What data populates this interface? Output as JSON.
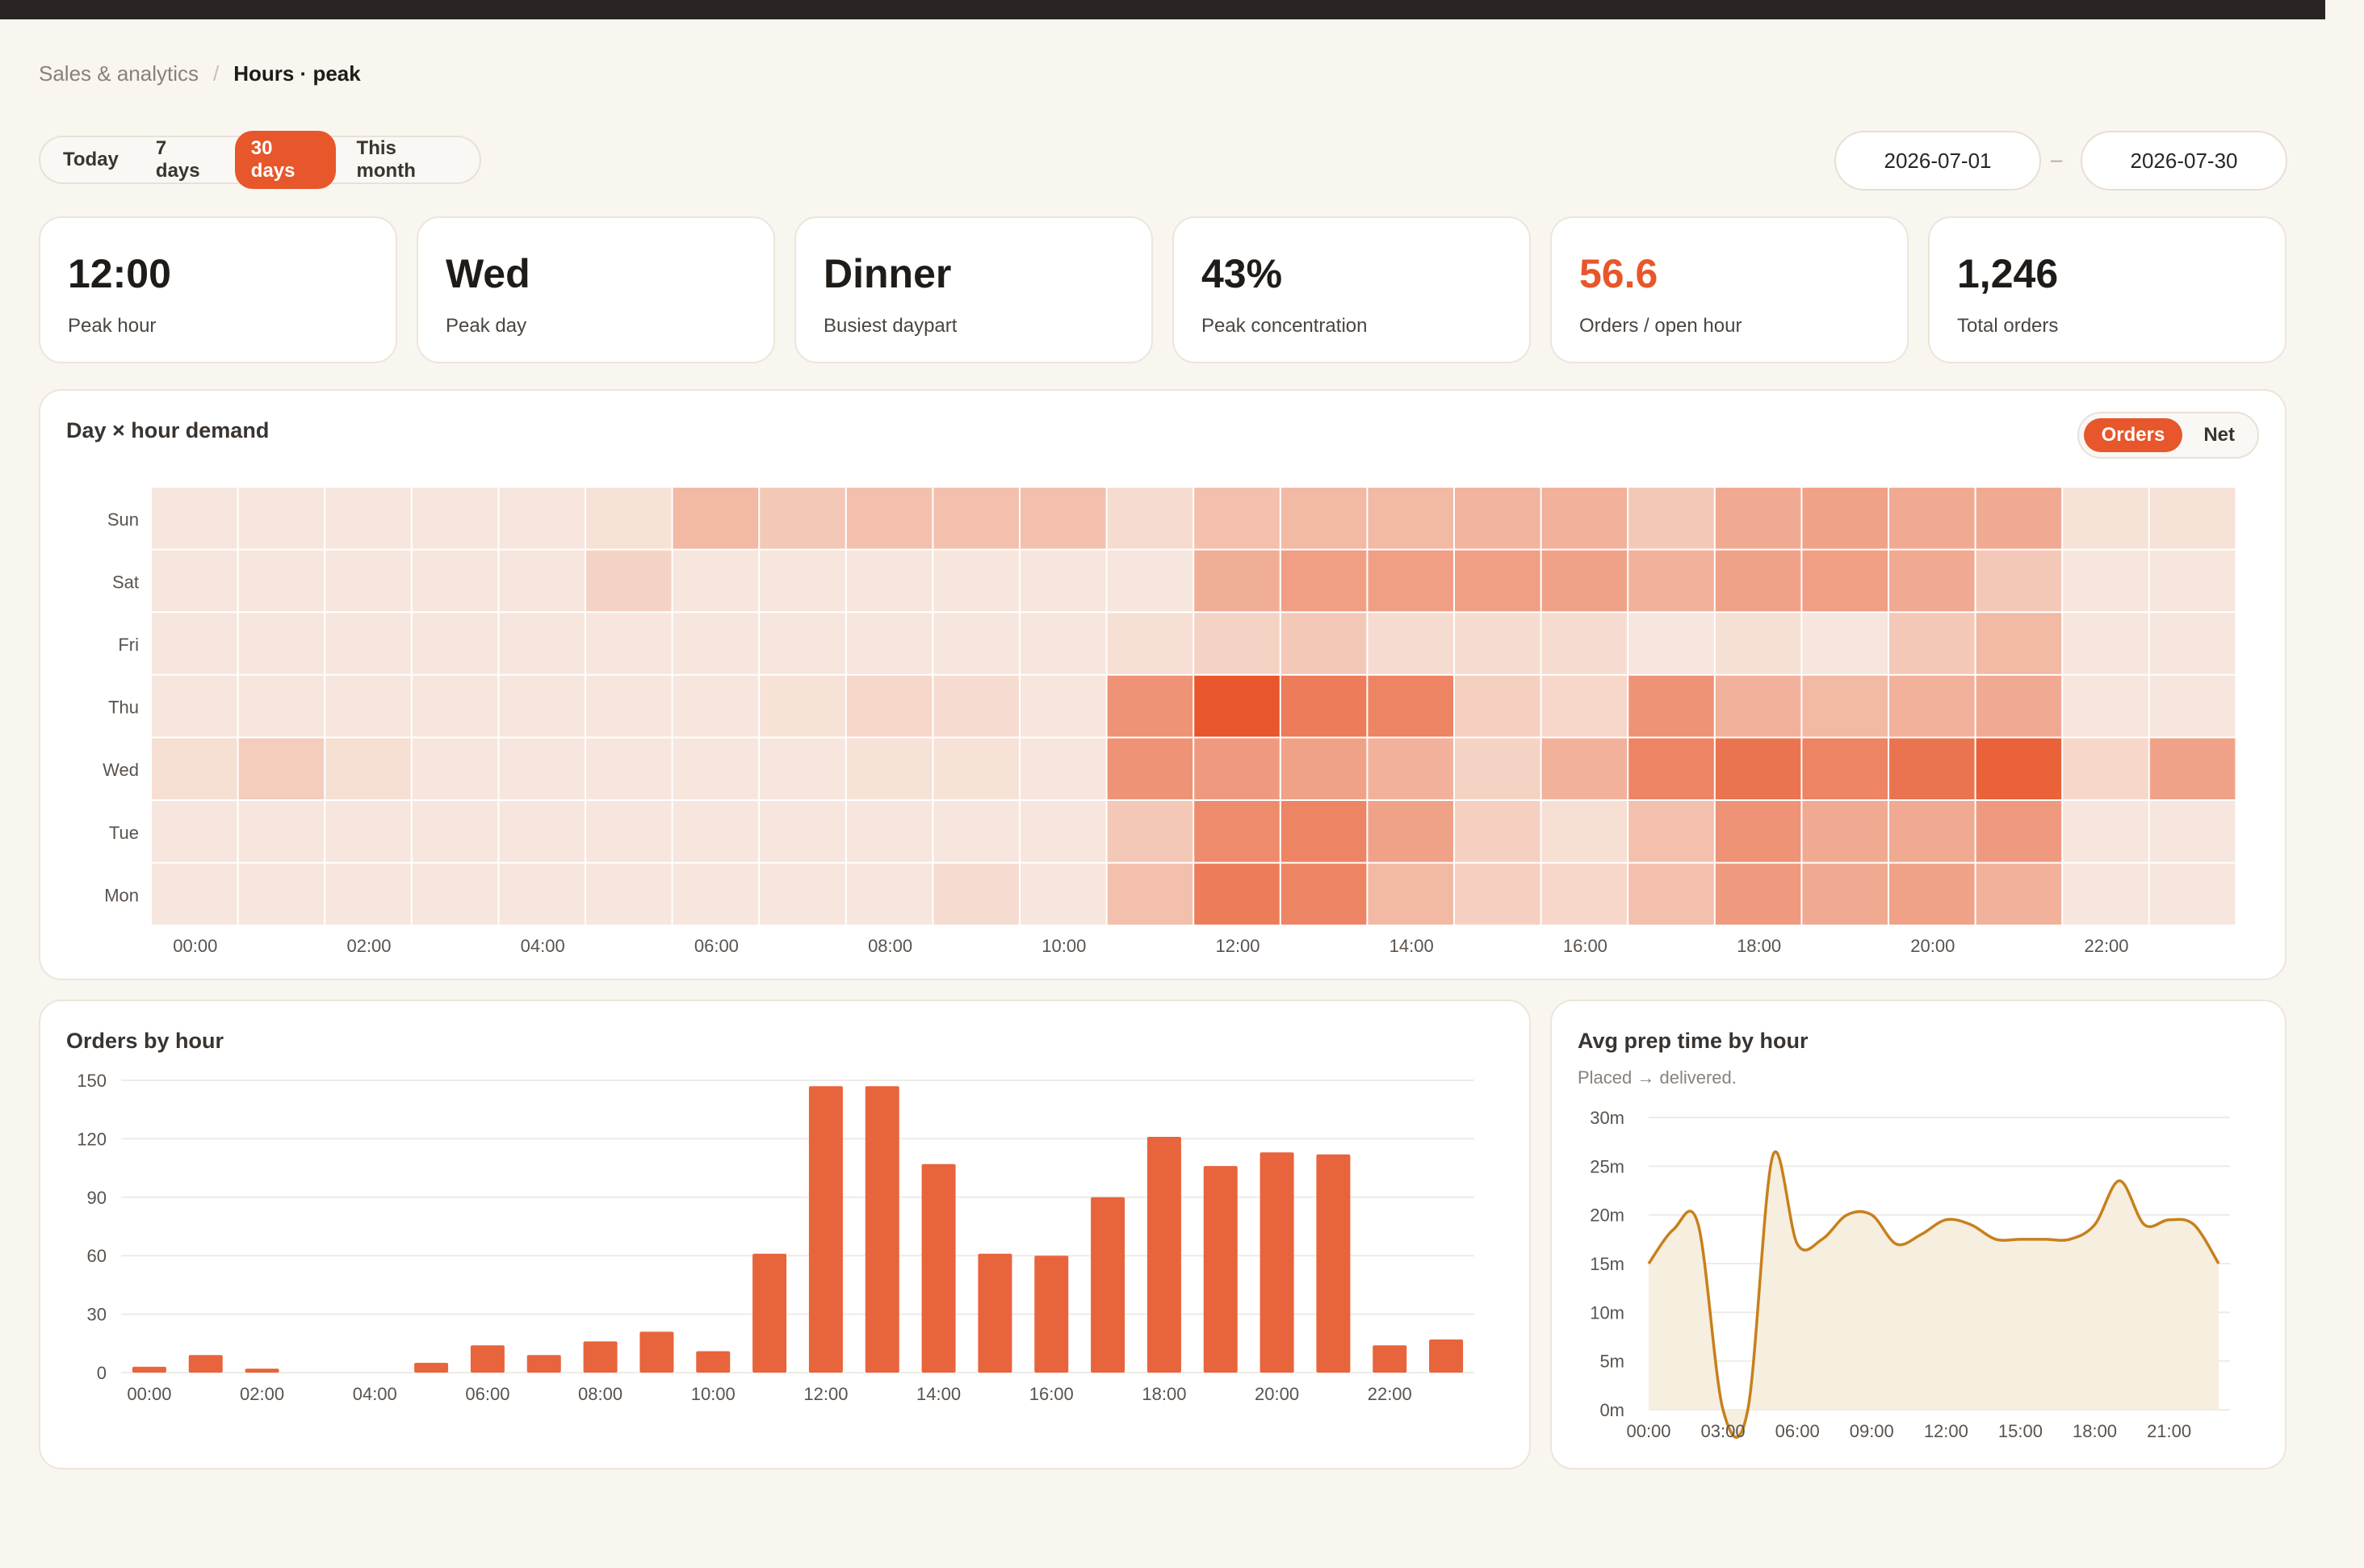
{
  "breadcrumb": {
    "parent": "Sales & analytics",
    "separator": "/",
    "current": "Hours · peak"
  },
  "range_tabs": [
    {
      "label": "Today",
      "active": false
    },
    {
      "label": "7 days",
      "active": false
    },
    {
      "label": "30 days",
      "active": true
    },
    {
      "label": "This month",
      "active": false
    }
  ],
  "date_range": {
    "start": "2026-07-01",
    "separator": "–",
    "end": "2026-07-30"
  },
  "kpis": [
    {
      "value": "12:00",
      "label": "Peak hour"
    },
    {
      "value": "Wed",
      "label": "Peak day"
    },
    {
      "value": "Dinner",
      "label": "Busiest daypart"
    },
    {
      "value": "43%",
      "label": "Peak concentration"
    },
    {
      "value": "56.6",
      "label": "Orders / open hour",
      "highlight": true
    },
    {
      "value": "1,246",
      "label": "Total orders"
    }
  ],
  "colors": {
    "accent": "#e8562b",
    "bar": "#e8643c",
    "line": "#c8801c",
    "area": "#f6eedf",
    "kpi_highlight": "#e8562b"
  },
  "heatmap": {
    "title": "Day × hour demand",
    "toggle": [
      {
        "label": "Orders",
        "active": true
      },
      {
        "label": "Net",
        "active": false
      }
    ],
    "days": [
      "Sun",
      "Sat",
      "Fri",
      "Thu",
      "Wed",
      "Tue",
      "Mon"
    ],
    "hour_labels": [
      "00:00",
      "02:00",
      "04:00",
      "06:00",
      "08:00",
      "10:00",
      "12:00",
      "14:00",
      "16:00",
      "18:00",
      "20:00",
      "22:00"
    ],
    "intensity": [
      [
        0.05,
        0.05,
        0.05,
        0.05,
        0.05,
        0.08,
        0.35,
        0.25,
        0.3,
        0.3,
        0.3,
        0.12,
        0.3,
        0.35,
        0.35,
        0.38,
        0.4,
        0.25,
        0.45,
        0.5,
        0.45,
        0.45,
        0.08,
        0.08
      ],
      [
        0.05,
        0.05,
        0.05,
        0.05,
        0.05,
        0.18,
        0.05,
        0.05,
        0.05,
        0.05,
        0.05,
        0.05,
        0.42,
        0.52,
        0.52,
        0.52,
        0.5,
        0.4,
        0.5,
        0.52,
        0.45,
        0.25,
        0.05,
        0.05
      ],
      [
        0.05,
        0.05,
        0.05,
        0.05,
        0.05,
        0.05,
        0.05,
        0.05,
        0.05,
        0.05,
        0.05,
        0.1,
        0.18,
        0.25,
        0.12,
        0.12,
        0.12,
        0.05,
        0.1,
        0.05,
        0.25,
        0.35,
        0.05,
        0.05
      ],
      [
        0.05,
        0.05,
        0.05,
        0.05,
        0.05,
        0.05,
        0.05,
        0.08,
        0.15,
        0.12,
        0.05,
        0.6,
        1.0,
        0.75,
        0.7,
        0.2,
        0.15,
        0.6,
        0.4,
        0.35,
        0.4,
        0.45,
        0.05,
        0.05
      ],
      [
        0.1,
        0.22,
        0.1,
        0.05,
        0.05,
        0.05,
        0.05,
        0.05,
        0.08,
        0.08,
        0.05,
        0.6,
        0.55,
        0.5,
        0.4,
        0.18,
        0.4,
        0.7,
        0.8,
        0.7,
        0.8,
        0.92,
        0.15,
        0.5
      ],
      [
        0.05,
        0.05,
        0.05,
        0.05,
        0.05,
        0.05,
        0.05,
        0.05,
        0.05,
        0.05,
        0.05,
        0.25,
        0.65,
        0.7,
        0.5,
        0.2,
        0.1,
        0.3,
        0.6,
        0.45,
        0.45,
        0.55,
        0.05,
        0.05
      ],
      [
        0.05,
        0.05,
        0.05,
        0.05,
        0.05,
        0.05,
        0.05,
        0.05,
        0.05,
        0.12,
        0.05,
        0.3,
        0.75,
        0.7,
        0.35,
        0.2,
        0.15,
        0.3,
        0.55,
        0.45,
        0.5,
        0.4,
        0.05,
        0.05
      ]
    ]
  },
  "chart_data": [
    {
      "type": "bar",
      "title": "Orders by hour",
      "categories": [
        "00:00",
        "01:00",
        "02:00",
        "03:00",
        "04:00",
        "05:00",
        "06:00",
        "07:00",
        "08:00",
        "09:00",
        "10:00",
        "11:00",
        "12:00",
        "13:00",
        "14:00",
        "15:00",
        "16:00",
        "17:00",
        "18:00",
        "19:00",
        "20:00",
        "21:00",
        "22:00",
        "23:00"
      ],
      "tick_labels": [
        "00:00",
        "02:00",
        "04:00",
        "06:00",
        "08:00",
        "10:00",
        "12:00",
        "14:00",
        "16:00",
        "18:00",
        "20:00",
        "22:00"
      ],
      "values": [
        3,
        9,
        2,
        0,
        0,
        5,
        14,
        9,
        16,
        21,
        11,
        61,
        147,
        147,
        107,
        61,
        60,
        90,
        121,
        106,
        113,
        112,
        14,
        17
      ],
      "ylim": [
        0,
        150
      ],
      "yticks": [
        0,
        30,
        60,
        90,
        120,
        150
      ],
      "grid": true
    },
    {
      "type": "area",
      "title": "Avg prep time by hour",
      "subtitle": "Placed → delivered.",
      "x": [
        "00:00",
        "01:00",
        "02:00",
        "03:00",
        "04:00",
        "05:00",
        "06:00",
        "07:00",
        "08:00",
        "09:00",
        "10:00",
        "11:00",
        "12:00",
        "13:00",
        "14:00",
        "15:00",
        "16:00",
        "17:00",
        "18:00",
        "19:00",
        "20:00",
        "21:00",
        "22:00",
        "23:00"
      ],
      "tick_labels": [
        "00:00",
        "03:00",
        "06:00",
        "09:00",
        "12:00",
        "15:00",
        "18:00",
        "21:00"
      ],
      "values": [
        15,
        18.5,
        19,
        0,
        0,
        26,
        17,
        17.5,
        20,
        20,
        17,
        18,
        19.5,
        19,
        17.5,
        17.5,
        17.5,
        17.5,
        19,
        23.5,
        19,
        19.5,
        19,
        15
      ],
      "yticks": [
        "0m",
        "5m",
        "10m",
        "15m",
        "20m",
        "25m",
        "30m"
      ],
      "ylim": [
        0,
        30
      ],
      "grid": true
    }
  ]
}
